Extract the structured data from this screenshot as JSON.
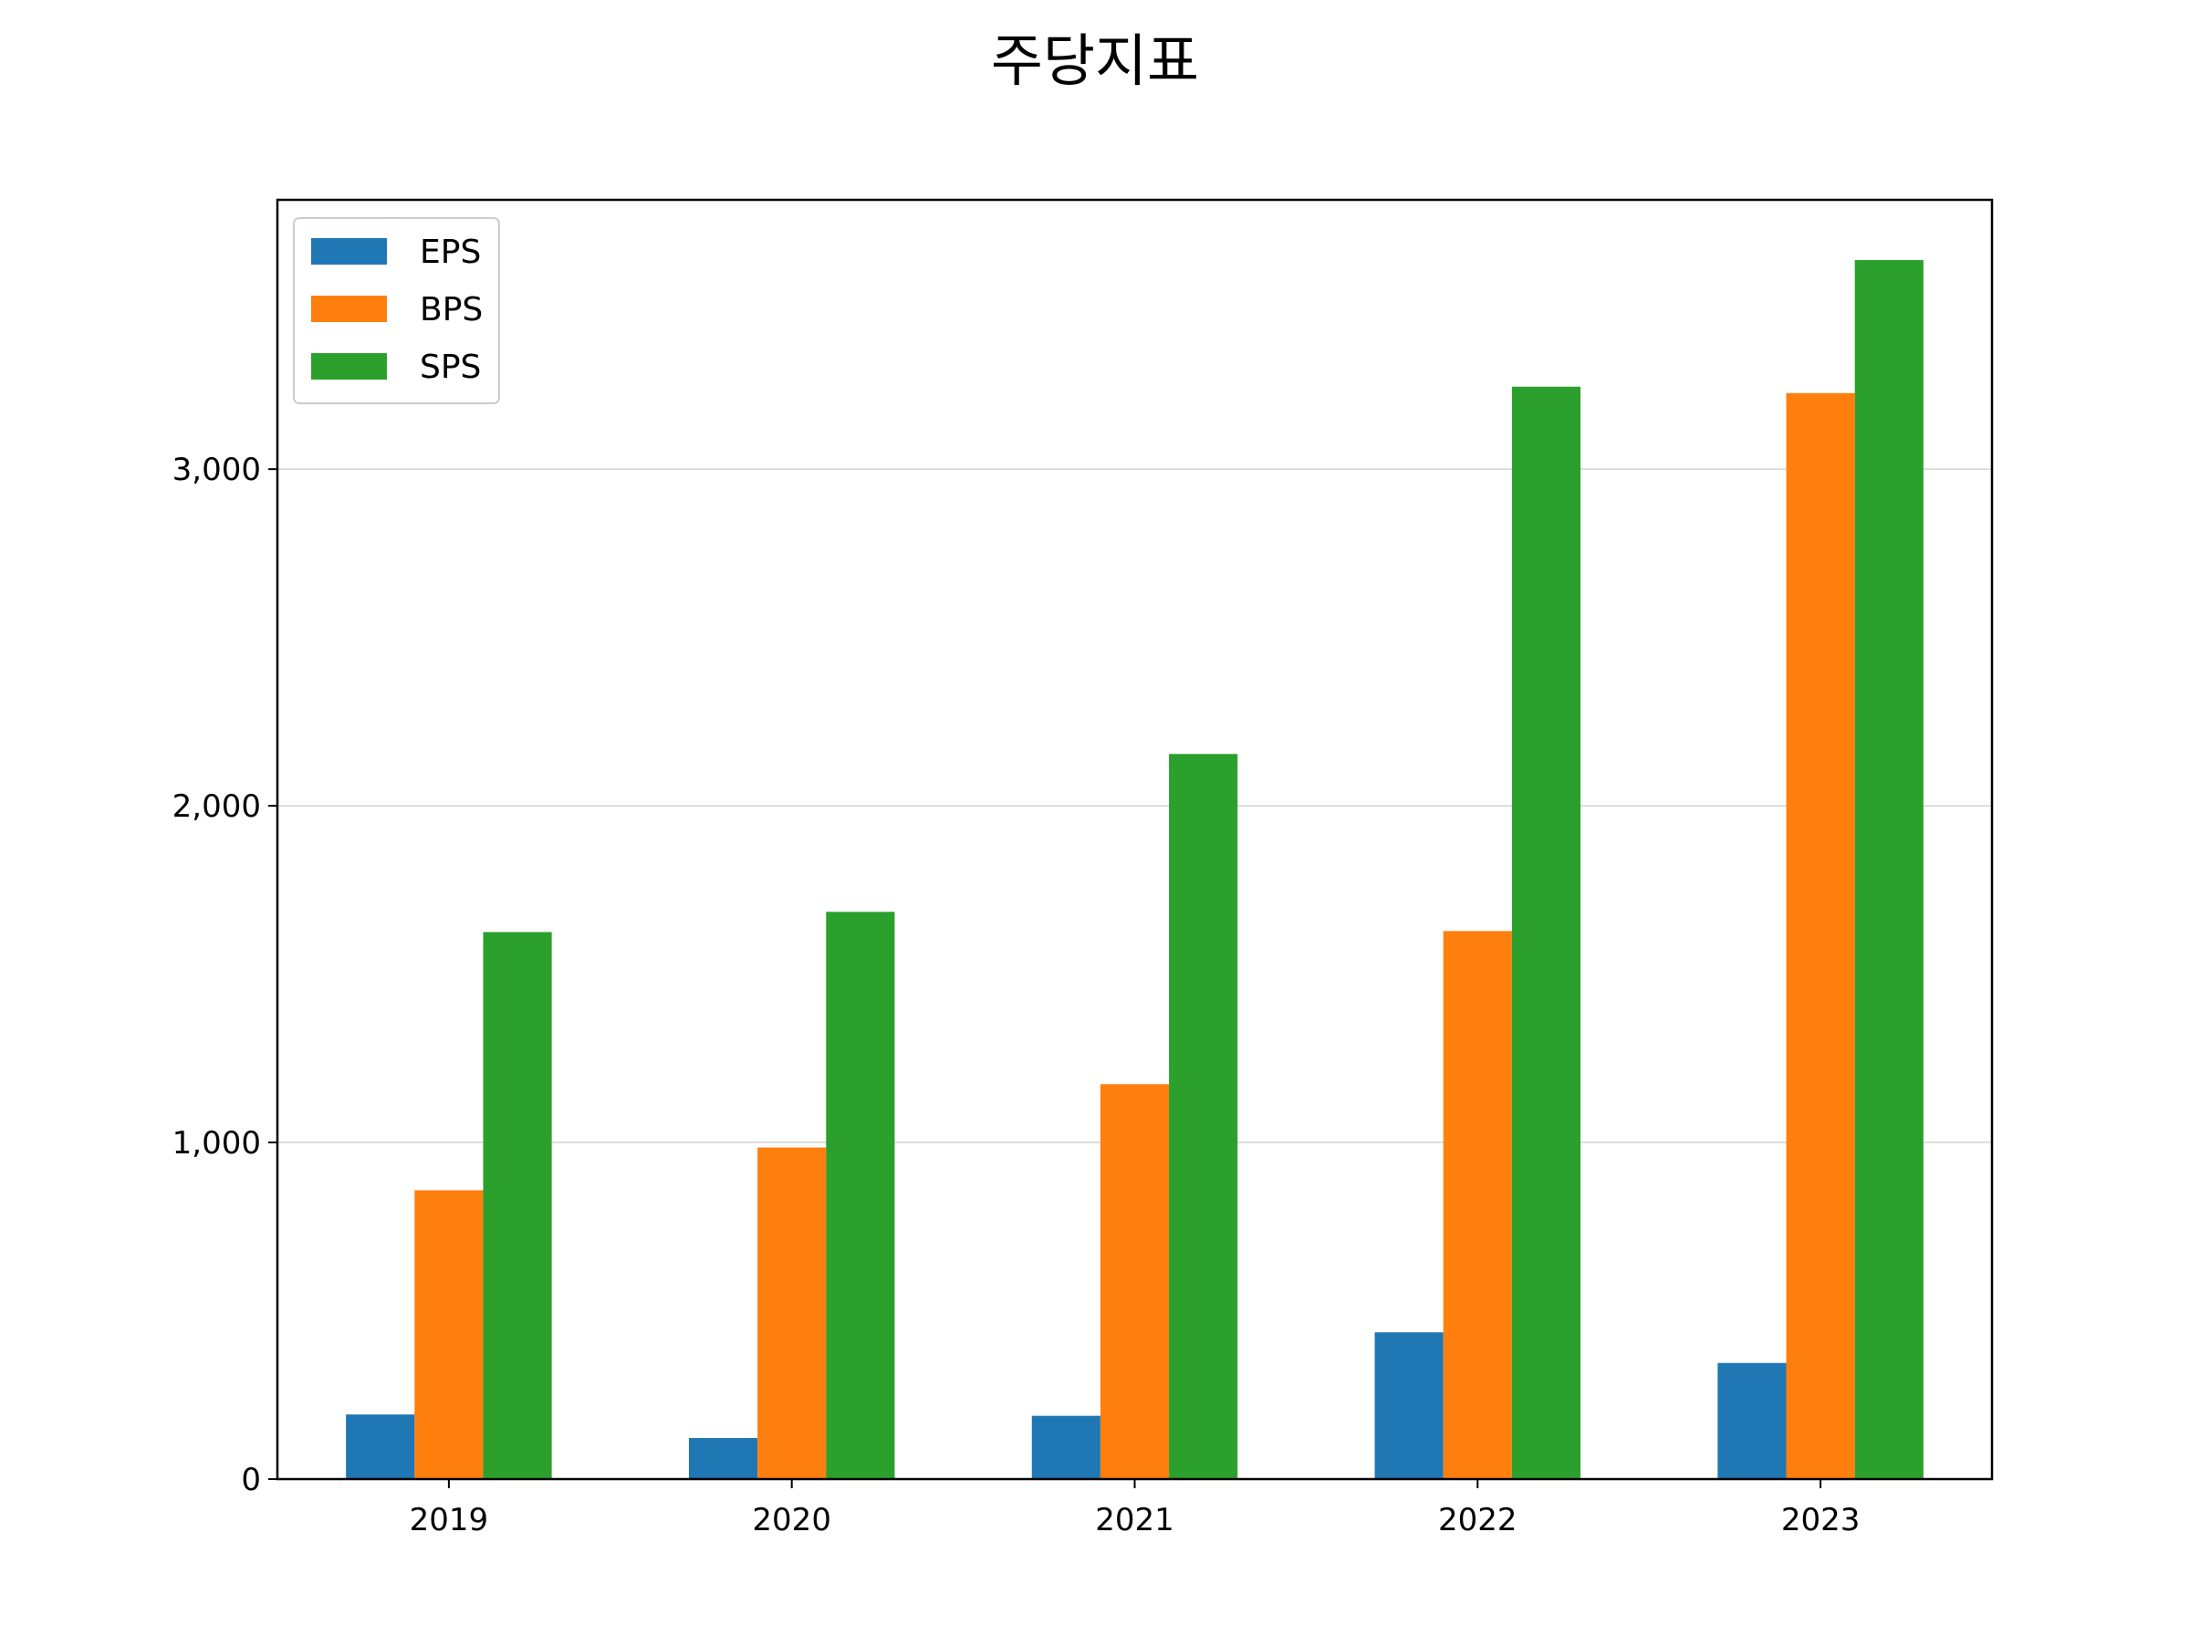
{
  "chart_data": {
    "type": "bar",
    "title": "주당지표",
    "xlabel": "",
    "ylabel": "",
    "categories": [
      "2019",
      "2020",
      "2021",
      "2022",
      "2023"
    ],
    "series": [
      {
        "name": "EPS",
        "color": "#1f77b4",
        "values": [
          192,
          122,
          188,
          436,
          345
        ]
      },
      {
        "name": "BPS",
        "color": "#ff7f0e",
        "values": [
          858,
          985,
          1173,
          1628,
          3226
        ]
      },
      {
        "name": "SPS",
        "color": "#2ca02c",
        "values": [
          1625,
          1685,
          2154,
          3245,
          3621
        ]
      }
    ],
    "ylim": [
      0,
      3800
    ],
    "yticks": [
      0,
      1000,
      2000,
      3000
    ],
    "ytick_labels": [
      "0",
      "1,000",
      "2,000",
      "3,000"
    ],
    "grid": "y",
    "legend": "top-left"
  }
}
